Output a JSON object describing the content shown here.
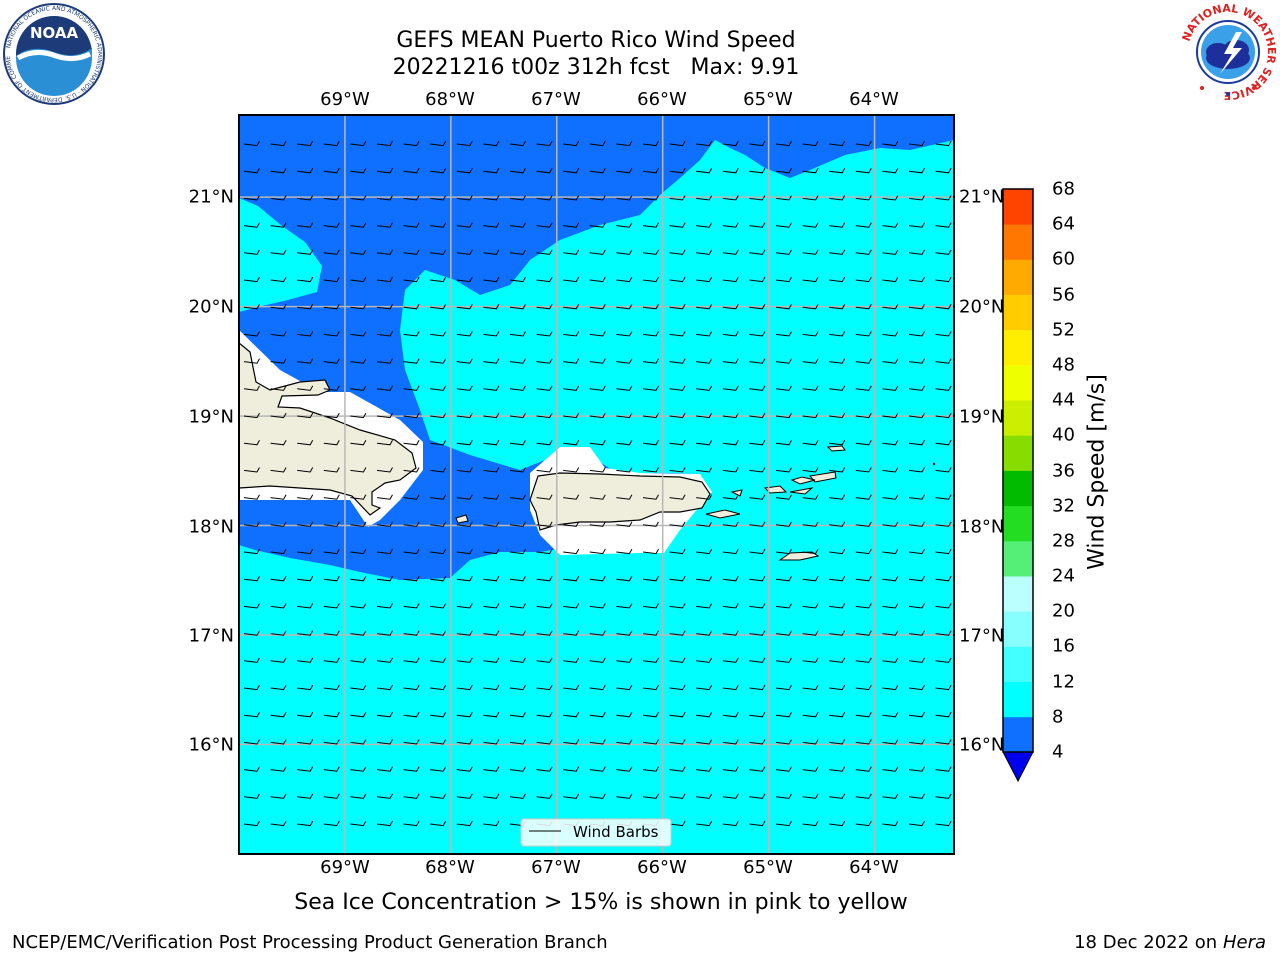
{
  "title": {
    "line1": "GEFS MEAN Puerto Rico Wind Speed",
    "line2": "20221216 t00z 312h fcst   Max: 9.91"
  },
  "map": {
    "longitude_labels": [
      "69°W",
      "68°W",
      "67°W",
      "66°W",
      "65°W",
      "64°W"
    ],
    "latitude_labels": [
      "21°N",
      "20°N",
      "19°N",
      "18°N",
      "17°N",
      "16°N"
    ],
    "longitude_values": [
      -69,
      -68,
      -67,
      -66,
      -65,
      -64
    ],
    "latitude_values": [
      21,
      20,
      19,
      18,
      17,
      16
    ],
    "extent": {
      "west": -70.0,
      "east": -63.25,
      "south": 15.0,
      "north": 21.75
    },
    "legend_label": "Wind Barbs",
    "colors": {
      "land": "#efeedc",
      "speed_4_8": "#0f6fff",
      "speed_8_12": "#00ffff",
      "grid": "#b8b8b8"
    }
  },
  "colorbar": {
    "label": "Wind Speed [m/s]",
    "ticks": [
      "68",
      "64",
      "60",
      "56",
      "52",
      "48",
      "44",
      "40",
      "36",
      "32",
      "28",
      "24",
      "20",
      "16",
      "12",
      "8",
      "4"
    ],
    "levels": [
      4,
      8,
      12,
      16,
      20,
      24,
      28,
      32,
      36,
      40,
      44,
      48,
      52,
      56,
      60,
      64,
      68
    ],
    "band_colors": [
      "#0f6fff",
      "#00ffff",
      "#44ffff",
      "#88ffff",
      "#bbffff",
      "#55ee77",
      "#22dd22",
      "#00bb00",
      "#88dd00",
      "#ccee00",
      "#eeff00",
      "#ffee00",
      "#ffcc00",
      "#ffaa00",
      "#ff7700",
      "#ff4400",
      "#ff1100"
    ],
    "under_color": "#0000ee"
  },
  "footer": {
    "note": "Sea Ice Concentration > 15% is shown in pink to yellow",
    "branch": "NCEP/EMC/Verification Post Processing Product Generation Branch",
    "date": "18 Dec 2022 on",
    "machine": "Hera"
  },
  "logos": {
    "noaa_text": "NOAA",
    "noaa_ring_text": "NATIONAL OCEANIC AND ATMOSPHERIC ADMINISTRATION · U.S. DEPARTMENT OF COMMERCE",
    "nws_ring_text": "NATIONAL WEATHER SERVICE"
  }
}
